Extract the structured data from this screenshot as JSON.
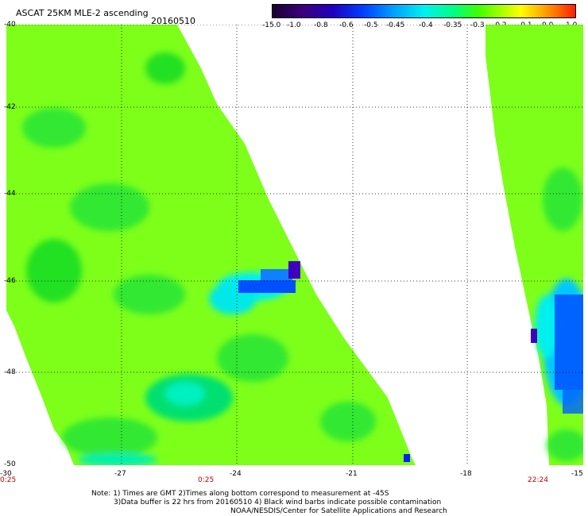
{
  "header": {
    "title": "ASCAT 25KM MLE-2 ascending",
    "date": "20160510"
  },
  "colorbar": {
    "labels": [
      "-15.0",
      "-1.0",
      "-0.8",
      "-0.6",
      "-0.5",
      "-0.45",
      "-0.4",
      "-0.35",
      "-0.3",
      "-0.2",
      "-0.1",
      "0.0",
      "1.0"
    ]
  },
  "axes": {
    "lat_labels": [
      "-40",
      "-42",
      "-44",
      "-46",
      "-48",
      "-50"
    ],
    "lon_labels": [
      "-30",
      "-27",
      "-24",
      "-21",
      "-18",
      "-15"
    ]
  },
  "times": {
    "left": "0:25",
    "middle": "0:25",
    "right": "22:24"
  },
  "notes": {
    "line1": "Note: 1) Times are GMT 2)Times along bottom correspond to measurement at -45S",
    "line2": "3)Data buffer is 22 hrs from 20160510 4) Black wind barbs indicate possible contamination",
    "line3": "NOAA/NESDIS/Center for Satellite Applications and Research"
  },
  "colors": {
    "background": "#ffffff",
    "field_green": "#7dff1a",
    "dark_green": "#20e020",
    "cyan": "#00f0f0",
    "blue": "#0050ff",
    "purple": "#4000c0",
    "time_label": "#c00000"
  }
}
